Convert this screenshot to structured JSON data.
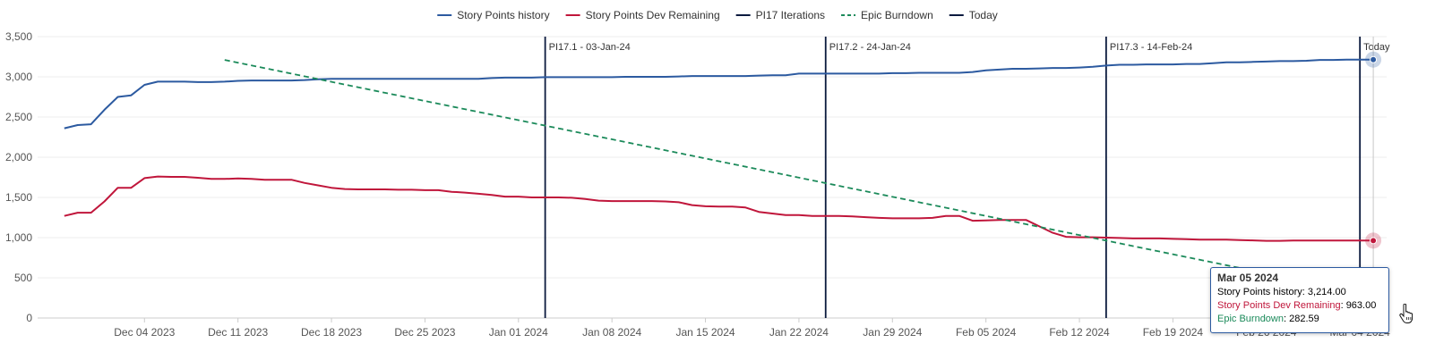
{
  "chart_data": {
    "type": "line",
    "y_ticks": [
      0,
      500,
      1000,
      1500,
      2000,
      2500,
      3000,
      3500
    ],
    "y_tick_labels": [
      "0",
      "500",
      "1,000",
      "1,500",
      "2,000",
      "2,500",
      "3,000",
      "3,500"
    ],
    "ylim": [
      0,
      3500
    ],
    "x_ticks": [
      "2023-12-04",
      "2023-12-11",
      "2023-12-18",
      "2023-12-25",
      "2024-01-01",
      "2024-01-08",
      "2024-01-15",
      "2024-01-22",
      "2024-01-29",
      "2024-02-05",
      "2024-02-12",
      "2024-02-19",
      "2024-02-26",
      "2024-03-04"
    ],
    "x_tick_labels": [
      "Dec 04 2023",
      "Dec 11 2023",
      "Dec 18 2023",
      "Dec 25 2023",
      "Jan 01 2024",
      "Jan 08 2024",
      "Jan 15 2024",
      "Jan 22 2024",
      "Jan 29 2024",
      "Feb 05 2024",
      "Feb 12 2024",
      "Feb 19 2024",
      "Feb 26 2024",
      "Mar 04 2024"
    ],
    "xlim": [
      "2023-11-26",
      "2024-03-06"
    ],
    "grid": "horizontal",
    "legend_position": "top-center",
    "legend": [
      {
        "label": "Story Points history",
        "color": "#2c5aa0",
        "style": "solid"
      },
      {
        "label": "Story Points Dev Remaining",
        "color": "#c0163b",
        "style": "solid"
      },
      {
        "label": "PI17 Iterations",
        "color": "#0b1a3e",
        "style": "solid"
      },
      {
        "label": "Epic Burndown",
        "color": "#1b8a5a",
        "style": "dashed"
      },
      {
        "label": "Today",
        "color": "#0b1a3e",
        "style": "solid"
      }
    ],
    "series": [
      {
        "name": "Story Points history",
        "color": "#2c5aa0",
        "x": [
          "2023-11-28",
          "2023-11-29",
          "2023-11-30",
          "2023-12-01",
          "2023-12-02",
          "2023-12-03",
          "2023-12-04",
          "2023-12-05",
          "2023-12-06",
          "2023-12-07",
          "2023-12-08",
          "2023-12-09",
          "2023-12-10",
          "2023-12-11",
          "2023-12-12",
          "2023-12-13",
          "2023-12-14",
          "2023-12-15",
          "2023-12-16",
          "2023-12-17",
          "2023-12-18",
          "2023-12-19",
          "2023-12-20",
          "2023-12-21",
          "2023-12-22",
          "2023-12-23",
          "2023-12-24",
          "2023-12-25",
          "2023-12-26",
          "2023-12-27",
          "2023-12-28",
          "2023-12-29",
          "2023-12-30",
          "2023-12-31",
          "2024-01-01",
          "2024-01-02",
          "2024-01-03",
          "2024-01-04",
          "2024-01-05",
          "2024-01-06",
          "2024-01-07",
          "2024-01-08",
          "2024-01-09",
          "2024-01-10",
          "2024-01-11",
          "2024-01-12",
          "2024-01-13",
          "2024-01-14",
          "2024-01-15",
          "2024-01-16",
          "2024-01-17",
          "2024-01-18",
          "2024-01-19",
          "2024-01-20",
          "2024-01-21",
          "2024-01-22",
          "2024-01-23",
          "2024-01-24",
          "2024-01-25",
          "2024-01-26",
          "2024-01-27",
          "2024-01-28",
          "2024-01-29",
          "2024-01-30",
          "2024-01-31",
          "2024-02-01",
          "2024-02-02",
          "2024-02-03",
          "2024-02-04",
          "2024-02-05",
          "2024-02-06",
          "2024-02-07",
          "2024-02-08",
          "2024-02-09",
          "2024-02-10",
          "2024-02-11",
          "2024-02-12",
          "2024-02-13",
          "2024-02-14",
          "2024-02-15",
          "2024-02-16",
          "2024-02-17",
          "2024-02-18",
          "2024-02-19",
          "2024-02-20",
          "2024-02-21",
          "2024-02-22",
          "2024-02-23",
          "2024-02-24",
          "2024-02-25",
          "2024-02-26",
          "2024-02-27",
          "2024-02-28",
          "2024-02-29",
          "2024-03-01",
          "2024-03-02",
          "2024-03-03",
          "2024-03-04",
          "2024-03-05"
        ],
        "values": [
          2360,
          2400,
          2410,
          2590,
          2750,
          2770,
          2900,
          2940,
          2940,
          2940,
          2935,
          2935,
          2940,
          2950,
          2955,
          2955,
          2955,
          2955,
          2960,
          2970,
          2975,
          2975,
          2975,
          2975,
          2975,
          2975,
          2975,
          2975,
          2975,
          2975,
          2975,
          2975,
          2985,
          2990,
          2990,
          2990,
          2995,
          2995,
          2995,
          2995,
          2995,
          2995,
          3000,
          3000,
          3000,
          3000,
          3005,
          3010,
          3010,
          3010,
          3010,
          3010,
          3015,
          3020,
          3020,
          3040,
          3040,
          3040,
          3040,
          3040,
          3040,
          3040,
          3045,
          3045,
          3050,
          3050,
          3050,
          3050,
          3060,
          3080,
          3090,
          3100,
          3100,
          3105,
          3110,
          3110,
          3115,
          3125,
          3140,
          3150,
          3150,
          3155,
          3155,
          3155,
          3160,
          3160,
          3170,
          3180,
          3180,
          3185,
          3190,
          3195,
          3195,
          3200,
          3210,
          3210,
          3214,
          3214,
          3214
        ]
      },
      {
        "name": "Story Points Dev Remaining",
        "color": "#c0163b",
        "x": [
          "2023-11-28",
          "2023-11-29",
          "2023-11-30",
          "2023-12-01",
          "2023-12-02",
          "2023-12-03",
          "2023-12-04",
          "2023-12-05",
          "2023-12-06",
          "2023-12-07",
          "2023-12-08",
          "2023-12-09",
          "2023-12-10",
          "2023-12-11",
          "2023-12-12",
          "2023-12-13",
          "2023-12-14",
          "2023-12-15",
          "2023-12-16",
          "2023-12-17",
          "2023-12-18",
          "2023-12-19",
          "2023-12-20",
          "2023-12-21",
          "2023-12-22",
          "2023-12-23",
          "2023-12-24",
          "2023-12-25",
          "2023-12-26",
          "2023-12-27",
          "2023-12-28",
          "2023-12-29",
          "2023-12-30",
          "2023-12-31",
          "2024-01-01",
          "2024-01-02",
          "2024-01-03",
          "2024-01-04",
          "2024-01-05",
          "2024-01-06",
          "2024-01-07",
          "2024-01-08",
          "2024-01-09",
          "2024-01-10",
          "2024-01-11",
          "2024-01-12",
          "2024-01-13",
          "2024-01-14",
          "2024-01-15",
          "2024-01-16",
          "2024-01-17",
          "2024-01-18",
          "2024-01-19",
          "2024-01-20",
          "2024-01-21",
          "2024-01-22",
          "2024-01-23",
          "2024-01-24",
          "2024-01-25",
          "2024-01-26",
          "2024-01-27",
          "2024-01-28",
          "2024-01-29",
          "2024-01-30",
          "2024-01-31",
          "2024-02-01",
          "2024-02-02",
          "2024-02-03",
          "2024-02-04",
          "2024-02-05",
          "2024-02-06",
          "2024-02-07",
          "2024-02-08",
          "2024-02-09",
          "2024-02-10",
          "2024-02-11",
          "2024-02-12",
          "2024-02-13",
          "2024-02-14",
          "2024-02-15",
          "2024-02-16",
          "2024-02-17",
          "2024-02-18",
          "2024-02-19",
          "2024-02-20",
          "2024-02-21",
          "2024-02-22",
          "2024-02-23",
          "2024-02-24",
          "2024-02-25",
          "2024-02-26",
          "2024-02-27",
          "2024-02-28",
          "2024-02-29",
          "2024-03-01",
          "2024-03-02",
          "2024-03-03",
          "2024-03-04",
          "2024-03-05"
        ],
        "values": [
          1270,
          1310,
          1310,
          1450,
          1620,
          1620,
          1740,
          1760,
          1755,
          1755,
          1745,
          1730,
          1730,
          1735,
          1730,
          1720,
          1720,
          1720,
          1680,
          1650,
          1620,
          1605,
          1600,
          1600,
          1600,
          1595,
          1595,
          1590,
          1590,
          1570,
          1560,
          1545,
          1530,
          1510,
          1510,
          1500,
          1500,
          1500,
          1495,
          1480,
          1460,
          1455,
          1455,
          1455,
          1455,
          1450,
          1440,
          1405,
          1390,
          1385,
          1385,
          1375,
          1320,
          1300,
          1280,
          1280,
          1270,
          1270,
          1270,
          1265,
          1255,
          1245,
          1240,
          1240,
          1240,
          1245,
          1270,
          1270,
          1210,
          1215,
          1220,
          1220,
          1220,
          1140,
          1060,
          1010,
          1005,
          1005,
          1000,
          995,
          990,
          990,
          990,
          985,
          980,
          975,
          975,
          975,
          970,
          965,
          960,
          960,
          963,
          963,
          963,
          963,
          963,
          963,
          963
        ]
      },
      {
        "name": "Epic Burndown",
        "color": "#1b8a5a",
        "x": [
          "2023-12-10",
          "2024-03-05"
        ],
        "values": [
          3210,
          282.59
        ]
      }
    ],
    "iterations": [
      {
        "date": "2024-01-03",
        "label": "PI17.1 - 03-Jan-24"
      },
      {
        "date": "2024-01-24",
        "label": "PI17.2 - 24-Jan-24"
      },
      {
        "date": "2024-02-14",
        "label": "PI17.3 - 14-Feb-24"
      }
    ],
    "today": {
      "date": "2024-03-04",
      "label": "Today"
    },
    "hover_date": "2024-03-05",
    "tooltip": {
      "title": "Mar 05 2024",
      "rows": [
        {
          "label": "Story Points history",
          "value": "3,214.00",
          "color": "#333333"
        },
        {
          "label": "Story Points Dev Remaining",
          "value": "963.00",
          "color": "#c0163b"
        },
        {
          "label": "Epic Burndown",
          "value": "282.59",
          "color": "#1b8a5a"
        }
      ]
    }
  }
}
